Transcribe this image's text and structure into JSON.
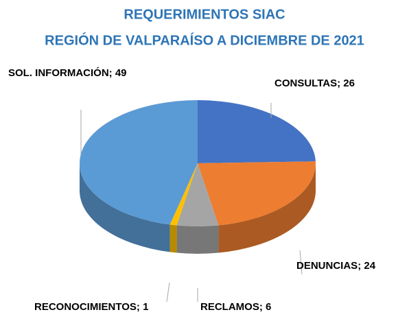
{
  "chart_data": {
    "type": "pie3d",
    "title": "REQUERIMIENTOS SIAC",
    "subtitle": "REGIÓN DE VALPARAÍSO A DICIEMBRE DE 2021",
    "categories": [
      "CONSULTAS",
      "DENUNCIAS",
      "RECLAMOS",
      "RECONOCIMIENTOS",
      "SOL. INFORMACIÓN"
    ],
    "values": [
      26,
      24,
      6,
      1,
      49
    ],
    "separator": "; ",
    "colors": [
      "#4472c4",
      "#ed7d31",
      "#a5a5a5",
      "#ffc000",
      "#5b9bd5"
    ]
  }
}
